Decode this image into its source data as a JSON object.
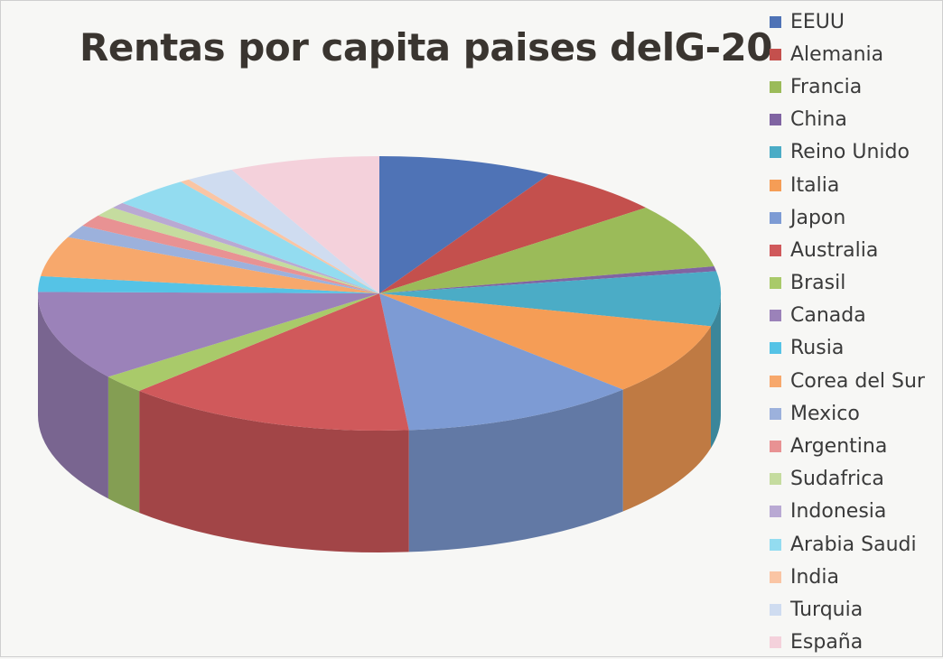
{
  "chart_data": {
    "type": "pie",
    "title": "Rentas por capita paises delG-20",
    "legend_position": "right",
    "categories": [
      "EEUU",
      "Alemania",
      "Francia",
      "China",
      "Reino Unido",
      "Italia",
      "Japon",
      "Australia",
      "Brasil",
      "Canada",
      "Rusia",
      "Corea del Sur",
      "Mexico",
      "Argentina",
      "Sudafrica",
      "Indonesia",
      "Arabia Saudi",
      "India",
      "Turquia",
      "España"
    ],
    "values": [
      7.2,
      5.2,
      6.6,
      0.5,
      5.6,
      7.4,
      9.8,
      12.0,
      1.9,
      9.2,
      1.6,
      4.1,
      1.3,
      1.2,
      1.0,
      0.6,
      3.2,
      0.4,
      2.0,
      6.2
    ],
    "colors": [
      "#4f73b6",
      "#c4504d",
      "#9bbb59",
      "#8064a2",
      "#4bacc6",
      "#f59d56",
      "#7d9bd4",
      "#d0595b",
      "#a9ca6a",
      "#9b82b9",
      "#55c3e6",
      "#f7a86c",
      "#9cb1dc",
      "#e89293",
      "#c5dc9f",
      "#b9a9d3",
      "#93dcf0",
      "#fac5a4",
      "#cfdcf0",
      "#f4d1db"
    ]
  }
}
